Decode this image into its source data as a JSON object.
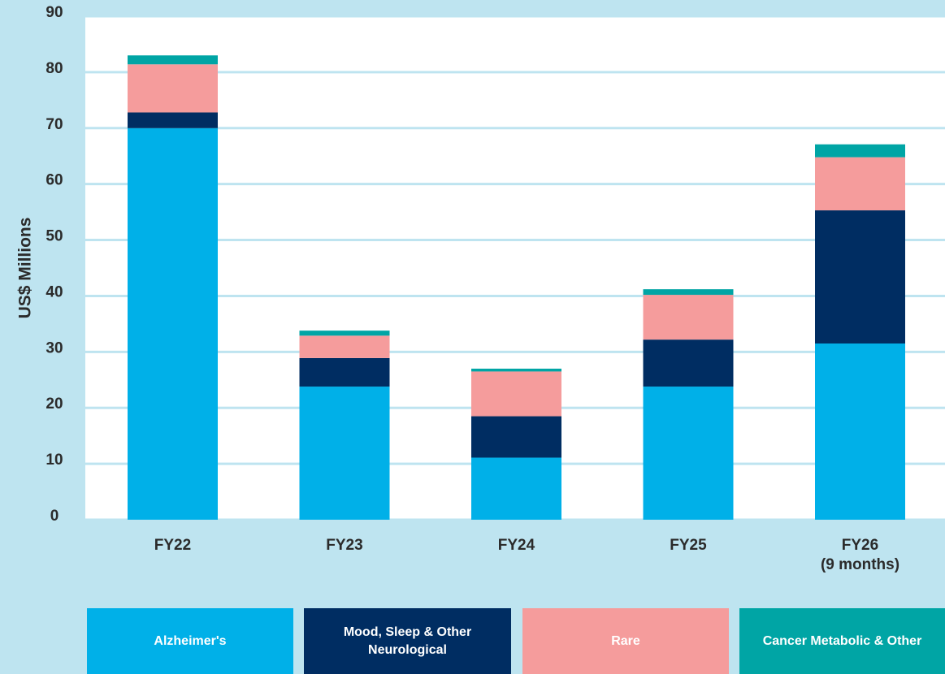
{
  "chart_data": {
    "type": "bar",
    "stacked": true,
    "y_label": "US$ Millions",
    "categories": [
      "FY22",
      "FY23",
      "FY24",
      "FY25",
      "FY26\n(9 months)"
    ],
    "series": [
      {
        "name": "Alzheimer's",
        "color": "#00b0e8",
        "values": [
          70,
          23.8,
          11.1,
          23.8,
          31.5
        ]
      },
      {
        "name": "Mood, Sleep & Other Neurological",
        "color": "#002d62",
        "values": [
          2.8,
          5.1,
          7.4,
          8.4,
          23.8
        ]
      },
      {
        "name": "Rare",
        "color": "#f59c9c",
        "values": [
          8.6,
          4,
          8,
          8,
          9.5
        ]
      },
      {
        "name": "Cancer Metabolic & Other",
        "color": "#00a5a5",
        "values": [
          1.6,
          0.9,
          0.5,
          1,
          2.3
        ]
      }
    ],
    "ylim": [
      0,
      90
    ],
    "yticks": [
      0,
      10,
      20,
      30,
      40,
      50,
      60,
      70,
      80,
      90
    ],
    "grid": true
  }
}
